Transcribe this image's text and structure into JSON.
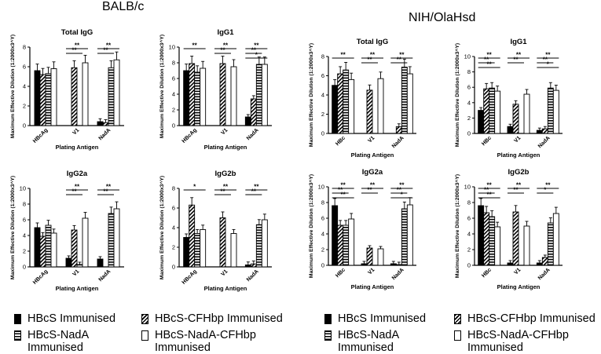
{
  "strains": {
    "left": "BALB/c",
    "right": "NIH/OlaHsd"
  },
  "legend": {
    "items": [
      {
        "label": "HBcS Immunised",
        "pattern": "solid-black"
      },
      {
        "label": "HBcS-CFHbp Immunised",
        "pattern": "diagonal-hatch"
      },
      {
        "label": "HBcS-NadA\nImmunised",
        "pattern": "horizontal-hatch"
      },
      {
        "label": "HBcS-NadA-CFHbp\nImmunised",
        "pattern": "white"
      }
    ]
  },
  "colors": {
    "bar_fill": "#000000",
    "background": "#ffffff"
  },
  "chart_data": [
    {
      "type": "bar",
      "panel": "BALB/c",
      "title": "Total IgG",
      "xlabel": "Plating Antigen",
      "ylabel": "Maximum Effective Dilution (1:2000x3^Y)",
      "categories": [
        "HBcAg",
        "V1",
        "NadA"
      ],
      "ylim": [
        0,
        8
      ],
      "yticks": [
        0,
        2,
        4,
        6,
        8
      ],
      "series": [
        {
          "name": "HBcS Immunised",
          "values": [
            5.6,
            0,
            0.4
          ]
        },
        {
          "name": "HBcS-CFHbp Immunised",
          "values": [
            5.2,
            5.9,
            0.3
          ]
        },
        {
          "name": "HBcS-NadA Immunised",
          "values": [
            5.3,
            0,
            5.9
          ]
        },
        {
          "name": "HBcS-NadA-CFHbp Immunised",
          "values": [
            5.8,
            6.4,
            6.7
          ]
        }
      ],
      "significance": [
        {
          "groups": [
            "V1",
            "V1"
          ],
          "label": "**"
        },
        {
          "groups": [
            "V1",
            "V1"
          ],
          "label": "**"
        },
        {
          "groups": [
            "NadA",
            "NadA"
          ],
          "label": "**"
        },
        {
          "groups": [
            "NadA",
            "NadA"
          ],
          "label": "**"
        }
      ]
    },
    {
      "type": "bar",
      "panel": "BALB/c",
      "title": "IgG1",
      "xlabel": "Plating Antigen",
      "ylabel": "Maximum Effective Dilution (1:2000x3^Y)",
      "categories": [
        "HBcAg",
        "V1",
        "NadA"
      ],
      "ylim": [
        0,
        10
      ],
      "yticks": [
        0,
        2,
        4,
        6,
        8,
        10
      ],
      "series": [
        {
          "name": "HBcS Immunised",
          "values": [
            7.0,
            0,
            1.1
          ]
        },
        {
          "name": "HBcS-CFHbp Immunised",
          "values": [
            7.9,
            7.9,
            3.4
          ]
        },
        {
          "name": "HBcS-NadA Immunised",
          "values": [
            6.8,
            0,
            7.8
          ]
        },
        {
          "name": "HBcS-NadA-CFHbp Immunised",
          "values": [
            7.3,
            7.5,
            7.8
          ]
        }
      ],
      "significance": [
        {
          "label": "**"
        },
        {
          "label": "**"
        },
        {
          "label": "**"
        },
        {
          "label": "**"
        },
        {
          "label": "**"
        },
        {
          "label": "*"
        }
      ]
    },
    {
      "type": "bar",
      "panel": "BALB/c",
      "title": "IgG2a",
      "xlabel": "Plating Antigen",
      "ylabel": "Maximum Effective Dilution (1:2000x3^Y)",
      "categories": [
        "HBcAg",
        "V1",
        "NadA"
      ],
      "ylim": [
        0,
        10
      ],
      "yticks": [
        0,
        2,
        4,
        6,
        8,
        10
      ],
      "series": [
        {
          "name": "HBcS Immunised",
          "values": [
            5.0,
            1.1,
            1.0
          ]
        },
        {
          "name": "HBcS-CFHbp Immunised",
          "values": [
            3.9,
            4.7,
            0
          ]
        },
        {
          "name": "HBcS-NadA Immunised",
          "values": [
            5.3,
            0.3,
            6.8
          ]
        },
        {
          "name": "HBcS-NadA-CFHbp Immunised",
          "values": [
            4.3,
            6.2,
            7.4
          ]
        }
      ],
      "significance": [
        {
          "label": "**"
        },
        {
          "label": "**"
        },
        {
          "label": "**"
        },
        {
          "label": "**"
        }
      ]
    },
    {
      "type": "bar",
      "panel": "BALB/c",
      "title": "IgG2b",
      "xlabel": "Plating Antigen",
      "ylabel": "Maximum Effective Dilution (1:2000x3^Y)",
      "categories": [
        "HBcAg",
        "V1",
        "NadA"
      ],
      "ylim": [
        0,
        8
      ],
      "yticks": [
        0,
        2,
        4,
        6,
        8
      ],
      "series": [
        {
          "name": "HBcS Immunised",
          "values": [
            3.0,
            0,
            0.2
          ]
        },
        {
          "name": "HBcS-CFHbp Immunised",
          "values": [
            6.3,
            5.0,
            0.3
          ]
        },
        {
          "name": "HBcS-NadA Immunised",
          "values": [
            3.4,
            0,
            4.3
          ]
        },
        {
          "name": "HBcS-NadA-CFHbp Immunised",
          "values": [
            3.8,
            3.4,
            4.8
          ]
        }
      ],
      "significance": [
        {
          "label": "*"
        },
        {
          "label": "**"
        },
        {
          "label": "**"
        },
        {
          "label": "**"
        },
        {
          "label": "**"
        }
      ]
    },
    {
      "type": "bar",
      "panel": "NIH/OlaHsd",
      "title": "Total IgG",
      "xlabel": "Plating Antigen",
      "ylabel": "Maximum Effective Dilution (1:2000x3^Y)",
      "categories": [
        "HBc",
        "V1",
        "NadA"
      ],
      "ylim": [
        0,
        8
      ],
      "yticks": [
        0,
        2,
        4,
        6,
        8
      ],
      "series": [
        {
          "name": "HBcS Immunised",
          "values": [
            5.0,
            0,
            0
          ]
        },
        {
          "name": "HBcS-CFHbp Immunised",
          "values": [
            6.2,
            4.5,
            0.7
          ]
        },
        {
          "name": "HBcS-NadA Immunised",
          "values": [
            6.6,
            0,
            6.9
          ]
        },
        {
          "name": "HBcS-NadA-CFHbp Immunised",
          "values": [
            5.6,
            5.7,
            6.2
          ]
        }
      ],
      "significance": [
        {
          "label": "**"
        },
        {
          "label": "**"
        },
        {
          "label": "**"
        },
        {
          "label": "**"
        },
        {
          "label": "**"
        }
      ]
    },
    {
      "type": "bar",
      "panel": "NIH/OlaHsd",
      "title": "IgG1",
      "xlabel": "Plating Antigen",
      "ylabel": "Maximum Effective Dilution (1:2000x3^Y)",
      "categories": [
        "HBc",
        "V1",
        "NadA"
      ],
      "ylim": [
        0,
        10
      ],
      "yticks": [
        0,
        2,
        4,
        6,
        8,
        10
      ],
      "series": [
        {
          "name": "HBcS Immunised",
          "values": [
            3.0,
            0.9,
            0.4
          ]
        },
        {
          "name": "HBcS-CFHbp Immunised",
          "values": [
            5.8,
            3.8,
            0.6
          ]
        },
        {
          "name": "HBcS-NadA Immunised",
          "values": [
            5.9,
            0,
            5.9
          ]
        },
        {
          "name": "HBcS-NadA-CFHbp Immunised",
          "values": [
            5.5,
            5.1,
            5.6
          ]
        }
      ],
      "significance": [
        {
          "label": "**"
        },
        {
          "label": "**"
        },
        {
          "label": "**"
        },
        {
          "label": "**"
        },
        {
          "label": "**"
        },
        {
          "label": "**"
        },
        {
          "label": "**"
        },
        {
          "label": "*"
        }
      ]
    },
    {
      "type": "bar",
      "panel": "NIH/OlaHsd",
      "title": "IgG2a",
      "xlabel": "Plating Antigen",
      "ylabel": "Maximum Effective Dilution (1:2000x3^Y)",
      "categories": [
        "HBc",
        "V1",
        "NadA"
      ],
      "ylim": [
        0,
        10
      ],
      "yticks": [
        0,
        2,
        4,
        6,
        8,
        10
      ],
      "series": [
        {
          "name": "HBcS Immunised",
          "values": [
            7.6,
            0.2,
            0.2
          ]
        },
        {
          "name": "HBcS-CFHbp Immunised",
          "values": [
            5.1,
            2.2,
            0.1
          ]
        },
        {
          "name": "HBcS-NadA Immunised",
          "values": [
            5.1,
            0,
            7.2
          ]
        },
        {
          "name": "HBcS-NadA-CFHbp Immunised",
          "values": [
            5.9,
            2.1,
            7.7
          ]
        }
      ],
      "significance": [
        {
          "label": "**"
        },
        {
          "label": "**"
        },
        {
          "label": "**"
        },
        {
          "label": "**"
        },
        {
          "label": "**"
        },
        {
          "label": "**"
        },
        {
          "label": "**"
        },
        {
          "label": "*"
        }
      ]
    },
    {
      "type": "bar",
      "panel": "NIH/OlaHsd",
      "title": "IgG2b",
      "xlabel": "Plating Antigen",
      "ylabel": "Maximum Effective Dilution (1:2000x3^Y)",
      "categories": [
        "HBc",
        "V1",
        "NadA"
      ],
      "ylim": [
        0,
        10
      ],
      "yticks": [
        0,
        2,
        4,
        6,
        8,
        10
      ],
      "series": [
        {
          "name": "HBcS Immunised",
          "values": [
            7.6,
            0.3,
            0.3
          ]
        },
        {
          "name": "HBcS-CFHbp Immunised",
          "values": [
            6.7,
            6.8,
            1.0
          ]
        },
        {
          "name": "HBcS-NadA Immunised",
          "values": [
            6.2,
            0,
            5.4
          ]
        },
        {
          "name": "HBcS-NadA-CFHbp Immunised",
          "values": [
            4.9,
            5.0,
            6.6
          ]
        }
      ],
      "significance": [
        {
          "label": "**"
        },
        {
          "label": "**"
        },
        {
          "label": "**"
        },
        {
          "label": "**"
        },
        {
          "label": "**"
        },
        {
          "label": "**"
        },
        {
          "label": "*"
        }
      ]
    }
  ]
}
